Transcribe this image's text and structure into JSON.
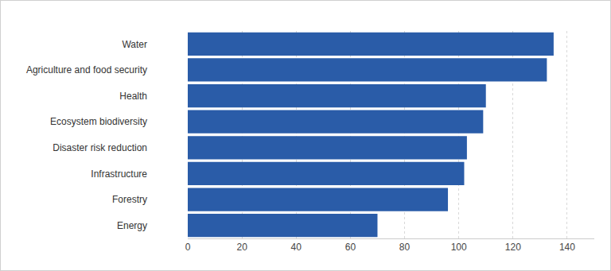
{
  "chart_data": {
    "type": "bar",
    "orientation": "horizontal",
    "categories": [
      "Water",
      "Agriculture and food security",
      "Health",
      "Ecosystem biodiversity",
      "Disaster risk reduction",
      "Infrastructure",
      "Forestry",
      "Energy"
    ],
    "values": [
      135,
      132.5,
      110,
      109,
      103,
      102,
      96,
      70
    ],
    "color": "#2a5ca8",
    "xlim": [
      0,
      150
    ],
    "xticks": [
      0,
      20,
      40,
      60,
      80,
      100,
      120,
      140
    ],
    "grid": true
  }
}
